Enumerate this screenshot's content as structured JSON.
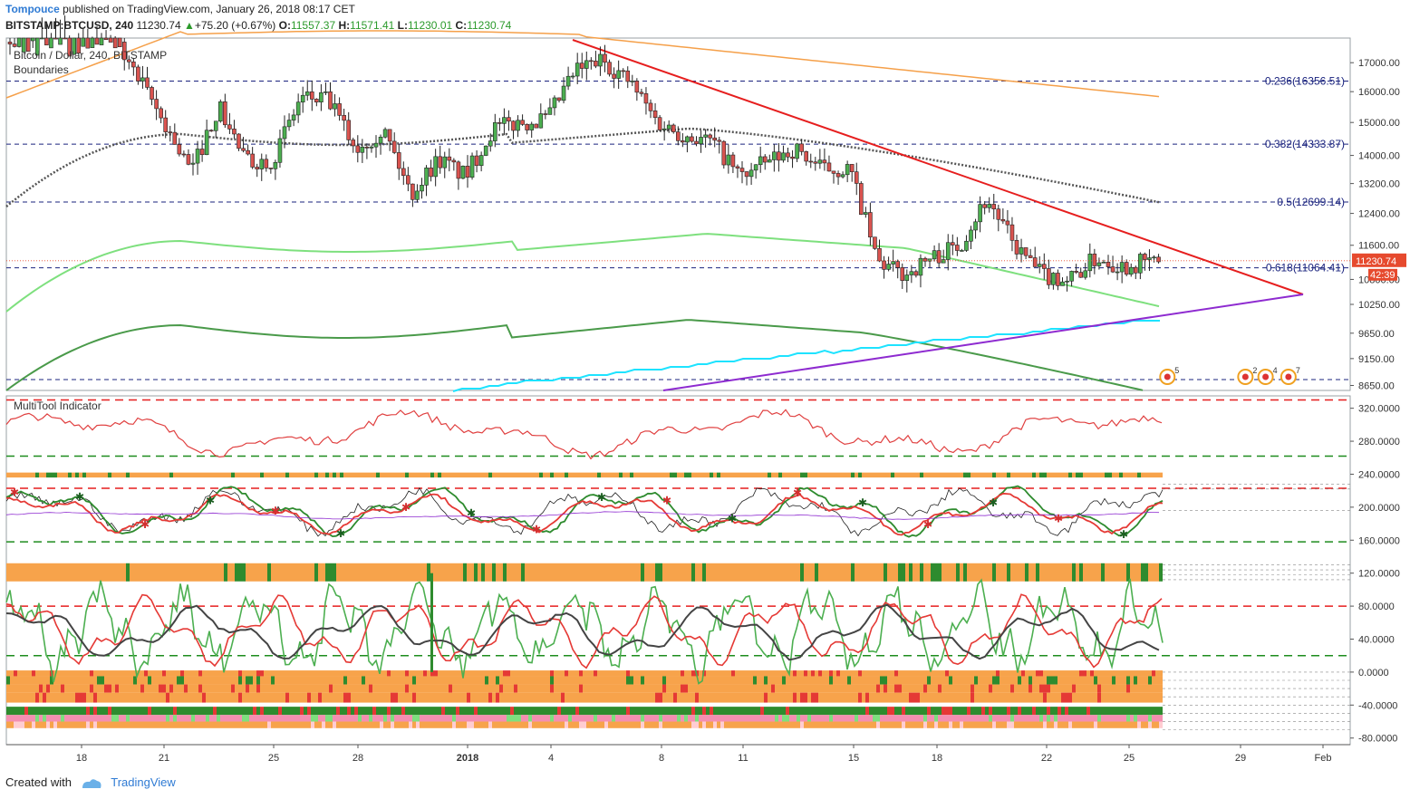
{
  "header": {
    "author": "Tompouce",
    "published_text": "published on TradingView.com, January 26, 2018 08:17 CET",
    "symbol": "BITSTAMP:BTCUSD, 240",
    "last": "11230.74",
    "change": "+75.20 (+0.67%)",
    "o_label": "O:",
    "o": "11557.37",
    "h_label": "H:",
    "h": "11571.41",
    "l_label": "L:",
    "l": "11230.01",
    "c_label": "C:",
    "c": "11230.74"
  },
  "footer": {
    "created_with": "Created with",
    "brand": "TradingView"
  },
  "colors": {
    "up": "#4caf50",
    "down": "#d9534f",
    "resistance": "#e61e1e",
    "support": "#8e2bd0",
    "fib": "#1a237e",
    "ma_gray": "#555555",
    "ma_orange": "#f5a04a",
    "ma_green": "#7ee07e",
    "ma_dgreen": "#4a9a4a",
    "ma_cyan": "#1ee3ff",
    "badge": "#e64a2e"
  },
  "chart_data": [
    {
      "type": "candlestick",
      "title": "Bitcoin / Dollar, 240, BITSTAMP",
      "subtitle": "Boundaries",
      "x_ticks": [
        "18",
        "21",
        "25",
        "28",
        "2018",
        "4",
        "8",
        "11",
        "15",
        "18",
        "22",
        "25",
        "29",
        "Feb"
      ],
      "y_ticks": [
        17000,
        16000,
        15000,
        14000,
        13200,
        12400,
        11600,
        10800,
        10250,
        9650,
        9150,
        8650
      ],
      "ylim": [
        8560,
        17900
      ],
      "scale": "log",
      "close_path_points": [
        [
          "Dec 15",
          17500
        ],
        [
          "Dec 17",
          18800
        ],
        [
          "Dec 19",
          18300
        ],
        [
          "Dec 20",
          16500
        ],
        [
          "Dec 22",
          13500
        ],
        [
          "Dec 23",
          15500
        ],
        [
          "Dec 24",
          13800
        ],
        [
          "Dec 25",
          13900
        ],
        [
          "Dec 26",
          15800
        ],
        [
          "Dec 27",
          15700
        ],
        [
          "Dec 28",
          14200
        ],
        [
          "Dec 29",
          14800
        ],
        [
          "Dec 30",
          12900
        ],
        [
          "Dec 31",
          13900
        ],
        [
          "Jan 1",
          13400
        ],
        [
          "Jan 2",
          14800
        ],
        [
          "Jan 3",
          15000
        ],
        [
          "Jan 4",
          15100
        ],
        [
          "Jan 5",
          16700
        ],
        [
          "Jan 6",
          17100
        ],
        [
          "Jan 7",
          16300
        ],
        [
          "Jan 8",
          15000
        ],
        [
          "Jan 9",
          14600
        ],
        [
          "Jan 10",
          14400
        ],
        [
          "Jan 11",
          13400
        ],
        [
          "Jan 12",
          13800
        ],
        [
          "Jan 13",
          14200
        ],
        [
          "Jan 14",
          13600
        ],
        [
          "Jan 15",
          13600
        ],
        [
          "Jan 16",
          11200
        ],
        [
          "Jan 17",
          10900
        ],
        [
          "Jan 18",
          11300
        ],
        [
          "Jan 19",
          11600
        ],
        [
          "Jan 20",
          12800
        ],
        [
          "Jan 21",
          11600
        ],
        [
          "Jan 22",
          10900
        ],
        [
          "Jan 23",
          10800
        ],
        [
          "Jan 24",
          11300
        ],
        [
          "Jan 25",
          11100
        ],
        [
          "Jan 26",
          11230
        ]
      ],
      "fib_levels": [
        {
          "label": "0.236(16356.51)",
          "value": 16356.51
        },
        {
          "label": "0.382(14333.87)",
          "value": 14333.87
        },
        {
          "label": "0.5(12699.14)",
          "value": 12699.14
        },
        {
          "label": "0.618(11064.41)",
          "value": 11064.41
        }
      ],
      "last_price_label": "11230.74",
      "countdown_label": "42:39",
      "events": [
        {
          "x": "Jan 25",
          "count": "5"
        },
        {
          "x": "Jan 29",
          "count": "2"
        },
        {
          "x": "Jan 30",
          "count": "4"
        },
        {
          "x": "Jan 31",
          "count": "7"
        }
      ]
    },
    {
      "type": "line",
      "title": "MultiTool Indicator",
      "y_ticks": [
        "320.0000",
        "280.0000",
        "240.0000",
        "200.0000",
        "160.0000",
        "120.0000",
        "80.0000",
        "40.0000",
        "0.0000",
        "-40.0000",
        "-80.0000"
      ],
      "ylim": [
        -88,
        335
      ],
      "red_dashed_levels": [
        330,
        223,
        80
      ],
      "green_dashed_levels": [
        262,
        158,
        20
      ]
    }
  ]
}
